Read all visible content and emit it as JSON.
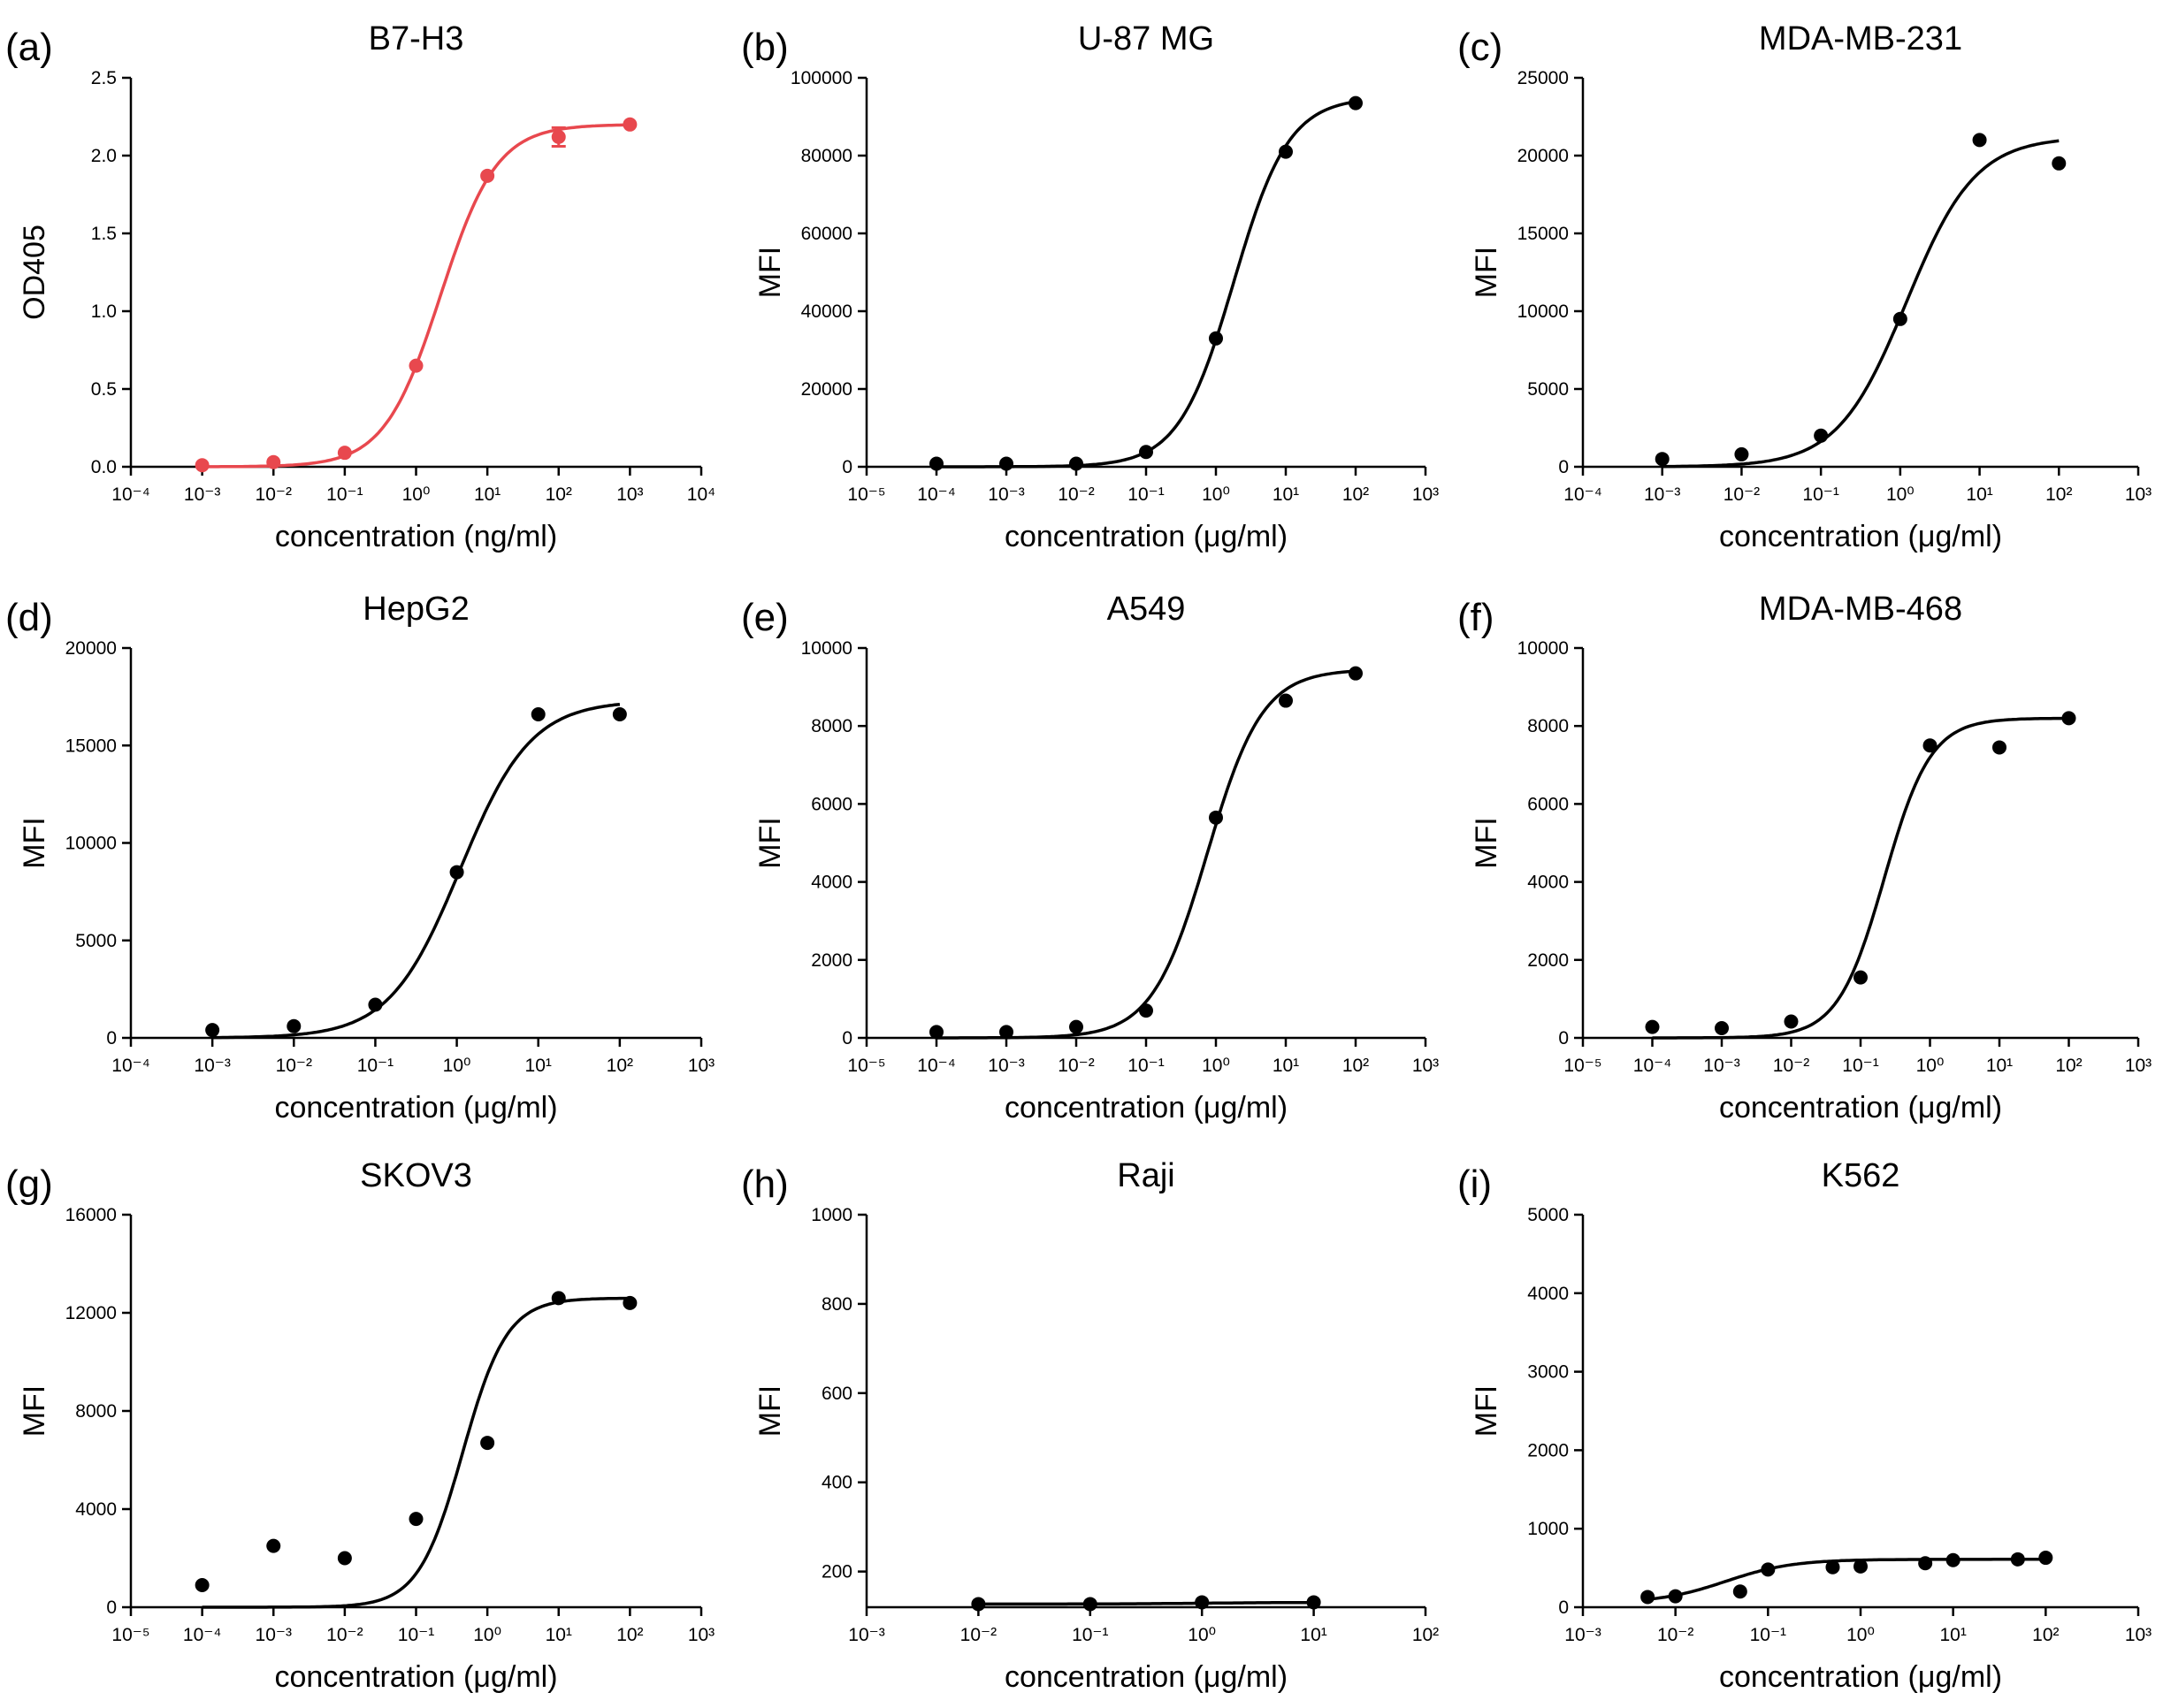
{
  "chart_data": [
    {
      "type": "scatter",
      "panel_label": "(a)",
      "title": "B7-H3",
      "xlabel": "concentration (ng/ml)",
      "ylabel": "OD405",
      "x_scale": "log10",
      "xlim_exp": [
        -4,
        4
      ],
      "ylim": [
        0,
        2.5
      ],
      "yticks": [
        0,
        0.5,
        1,
        1.5,
        2,
        2.5
      ],
      "ytick_labels": [
        "0.0",
        "0.5",
        "1.0",
        "1.5",
        "2.0",
        "2.5"
      ],
      "color": "#e8484e",
      "points": [
        {
          "x": 0.001,
          "y": 0.01
        },
        {
          "x": 0.01,
          "y": 0.03
        },
        {
          "x": 0.1,
          "y": 0.09
        },
        {
          "x": 1,
          "y": 0.65
        },
        {
          "x": 10,
          "y": 1.87
        },
        {
          "x": 100,
          "y": 2.12,
          "err": 0.06
        },
        {
          "x": 1000,
          "y": 2.2
        }
      ],
      "fit": {
        "bottom": 0.0,
        "top": 2.2,
        "ec50": 2.2,
        "hill": 1.1
      }
    },
    {
      "type": "scatter",
      "panel_label": "(b)",
      "title": "U-87 MG",
      "xlabel": "concentration (μg/ml)",
      "ylabel": "MFI",
      "x_scale": "log10",
      "xlim_exp": [
        -5,
        3
      ],
      "ylim": [
        0,
        100000
      ],
      "yticks": [
        0,
        20000,
        40000,
        60000,
        80000,
        100000
      ],
      "ytick_labels": [
        "0",
        "20000",
        "40000",
        "60000",
        "80000",
        "100000"
      ],
      "color": "#000000",
      "points": [
        {
          "x": 0.0001,
          "y": 800
        },
        {
          "x": 0.001,
          "y": 800
        },
        {
          "x": 0.01,
          "y": 800
        },
        {
          "x": 0.1,
          "y": 3800
        },
        {
          "x": 1,
          "y": 33000
        },
        {
          "x": 10,
          "y": 81000
        },
        {
          "x": 100,
          "y": 93500
        }
      ],
      "fit": {
        "bottom": 0,
        "top": 95000,
        "ec50": 1.8,
        "hill": 1.1
      }
    },
    {
      "type": "scatter",
      "panel_label": "(c)",
      "title": "MDA-MB-231",
      "xlabel": "concentration (μg/ml)",
      "ylabel": "MFI",
      "x_scale": "log10",
      "xlim_exp": [
        -4,
        3
      ],
      "ylim": [
        0,
        25000
      ],
      "yticks": [
        0,
        5000,
        10000,
        15000,
        20000,
        25000
      ],
      "ytick_labels": [
        "0",
        "5000",
        "10000",
        "15000",
        "20000",
        "25000"
      ],
      "color": "#000000",
      "points": [
        {
          "x": 0.001,
          "y": 500
        },
        {
          "x": 0.01,
          "y": 800
        },
        {
          "x": 0.1,
          "y": 2000
        },
        {
          "x": 1,
          "y": 9500
        },
        {
          "x": 10,
          "y": 21000
        },
        {
          "x": 100,
          "y": 19500
        }
      ],
      "fit": {
        "bottom": 0,
        "top": 21200,
        "ec50": 1.2,
        "hill": 1.0
      }
    },
    {
      "type": "scatter",
      "panel_label": "(d)",
      "title": "HepG2",
      "xlabel": "concentration (μg/ml)",
      "ylabel": "MFI",
      "x_scale": "log10",
      "xlim_exp": [
        -4,
        3
      ],
      "ylim": [
        0,
        20000
      ],
      "yticks": [
        0,
        5000,
        10000,
        15000,
        20000
      ],
      "ytick_labels": [
        "0",
        "5000",
        "10000",
        "15000",
        "20000"
      ],
      "color": "#000000",
      "points": [
        {
          "x": 0.001,
          "y": 400
        },
        {
          "x": 0.01,
          "y": 600
        },
        {
          "x": 0.1,
          "y": 1700
        },
        {
          "x": 1,
          "y": 8500
        },
        {
          "x": 10,
          "y": 16600
        },
        {
          "x": 100,
          "y": 16600
        }
      ],
      "fit": {
        "bottom": 0,
        "top": 17300,
        "ec50": 1.1,
        "hill": 1.0
      }
    },
    {
      "type": "scatter",
      "panel_label": "(e)",
      "title": "A549",
      "xlabel": "concentration (μg/ml)",
      "ylabel": "MFI",
      "x_scale": "log10",
      "xlim_exp": [
        -5,
        3
      ],
      "ylim": [
        0,
        10000
      ],
      "yticks": [
        0,
        2000,
        4000,
        6000,
        8000,
        10000
      ],
      "ytick_labels": [
        "0",
        "2000",
        "4000",
        "6000",
        "8000",
        "10000"
      ],
      "color": "#000000",
      "points": [
        {
          "x": 0.0001,
          "y": 150
        },
        {
          "x": 0.001,
          "y": 150
        },
        {
          "x": 0.01,
          "y": 280
        },
        {
          "x": 0.1,
          "y": 700
        },
        {
          "x": 1,
          "y": 5650
        },
        {
          "x": 10,
          "y": 8650
        },
        {
          "x": 100,
          "y": 9350
        }
      ],
      "fit": {
        "bottom": 0,
        "top": 9450,
        "ec50": 0.75,
        "hill": 1.1
      }
    },
    {
      "type": "scatter",
      "panel_label": "(f)",
      "title": "MDA-MB-468",
      "xlabel": "concentration (μg/ml)",
      "ylabel": "MFI",
      "x_scale": "log10",
      "xlim_exp": [
        -5,
        3
      ],
      "ylim": [
        0,
        10000
      ],
      "yticks": [
        0,
        2000,
        4000,
        6000,
        8000,
        10000
      ],
      "ytick_labels": [
        "0",
        "2000",
        "4000",
        "6000",
        "8000",
        "10000"
      ],
      "color": "#000000",
      "points": [
        {
          "x": 0.0001,
          "y": 280
        },
        {
          "x": 0.001,
          "y": 250
        },
        {
          "x": 0.01,
          "y": 420
        },
        {
          "x": 0.1,
          "y": 1550
        },
        {
          "x": 1,
          "y": 7500
        },
        {
          "x": 10,
          "y": 7450
        },
        {
          "x": 100,
          "y": 8200
        }
      ],
      "fit": {
        "bottom": 0,
        "top": 8200,
        "ec50": 0.22,
        "hill": 1.3
      }
    },
    {
      "type": "scatter",
      "panel_label": "(g)",
      "title": "SKOV3",
      "xlabel": "concentration (μg/ml)",
      "ylabel": "MFI",
      "x_scale": "log10",
      "xlim_exp": [
        -5,
        3
      ],
      "ylim": [
        0,
        16000
      ],
      "yticks": [
        0,
        4000,
        8000,
        12000,
        16000
      ],
      "ytick_labels": [
        "0",
        "4000",
        "8000",
        "12000",
        "16000"
      ],
      "color": "#000000",
      "points": [
        {
          "x": 0.0001,
          "y": 900
        },
        {
          "x": 0.001,
          "y": 2500
        },
        {
          "x": 0.01,
          "y": 2000
        },
        {
          "x": 0.1,
          "y": 3600
        },
        {
          "x": 1,
          "y": 6700
        },
        {
          "x": 10,
          "y": 12600
        },
        {
          "x": 100,
          "y": 12400
        }
      ],
      "fit": {
        "bottom": 0,
        "top": 12600,
        "ec50": 0.45,
        "hill": 1.4
      }
    },
    {
      "type": "scatter",
      "panel_label": "(h)",
      "title": "Raji",
      "xlabel": "concentration (μg/ml)",
      "ylabel": "MFI",
      "x_scale": "log10",
      "xlim_exp": [
        -3,
        2
      ],
      "ylim": [
        120,
        1000
      ],
      "yticks": [
        200,
        400,
        600,
        800,
        1000
      ],
      "ytick_labels": [
        "200",
        "400",
        "600",
        "800",
        "1000"
      ],
      "color": "#000000",
      "points": [
        {
          "x": 0.01,
          "y": 127
        },
        {
          "x": 0.1,
          "y": 127
        },
        {
          "x": 1,
          "y": 131
        },
        {
          "x": 10,
          "y": 131
        }
      ],
      "fit": {
        "bottom": 127,
        "top": 131,
        "ec50": 1,
        "hill": 1.0
      }
    },
    {
      "type": "scatter",
      "panel_label": "(i)",
      "title": "K562",
      "xlabel": "concentration (μg/ml)",
      "ylabel": "MFI",
      "x_scale": "log10",
      "xlim_exp": [
        -3,
        3
      ],
      "ylim": [
        0,
        5000
      ],
      "yticks": [
        0,
        1000,
        2000,
        3000,
        4000,
        5000
      ],
      "ytick_labels": [
        "0",
        "1000",
        "2000",
        "3000",
        "4000",
        "5000"
      ],
      "color": "#000000",
      "points": [
        {
          "x": 0.005,
          "y": 130
        },
        {
          "x": 0.01,
          "y": 140
        },
        {
          "x": 0.05,
          "y": 200
        },
        {
          "x": 0.1,
          "y": 480
        },
        {
          "x": 0.5,
          "y": 510
        },
        {
          "x": 1,
          "y": 520
        },
        {
          "x": 5,
          "y": 560
        },
        {
          "x": 10,
          "y": 600
        },
        {
          "x": 50,
          "y": 610
        },
        {
          "x": 100,
          "y": 630
        }
      ],
      "fit": {
        "bottom": 50,
        "top": 610,
        "ec50": 0.035,
        "hill": 1.2
      }
    }
  ]
}
